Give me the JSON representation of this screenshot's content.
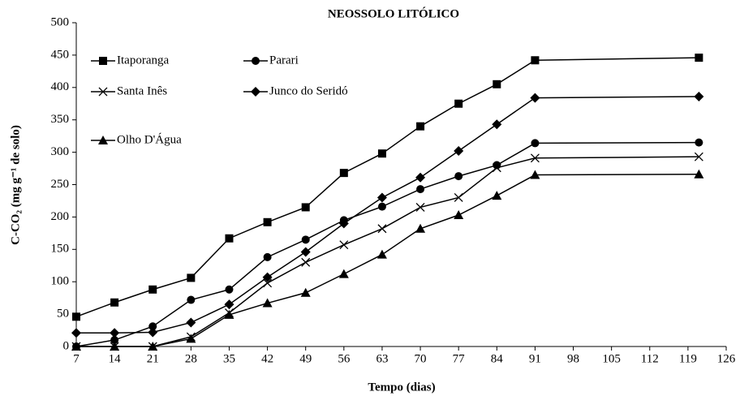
{
  "chart_data": {
    "type": "line",
    "title": "NEOSSOLO LITÓLICO",
    "x_label": "Tempo (dias)",
    "y_label": "C-CO₂ (mg g⁻¹ de solo)",
    "x": [
      7,
      14,
      21,
      28,
      35,
      42,
      49,
      56,
      63,
      70,
      77,
      84,
      91,
      121
    ],
    "xlim": [
      7,
      126
    ],
    "xticks": [
      7,
      14,
      21,
      28,
      35,
      42,
      49,
      56,
      63,
      70,
      77,
      84,
      91,
      98,
      105,
      112,
      119,
      126
    ],
    "ylim": [
      0,
      500
    ],
    "yticks": [
      0,
      50,
      100,
      150,
      200,
      250,
      300,
      350,
      400,
      450,
      500
    ],
    "legend": "upper left",
    "grid": false,
    "series": [
      {
        "name": "Itaporanga",
        "color": "#000000",
        "marker": "square",
        "values": [
          46,
          68,
          88,
          106,
          167,
          192,
          215,
          268,
          298,
          340,
          375,
          405,
          442,
          446
        ]
      },
      {
        "name": "Parari",
        "color": "#000000",
        "marker": "circle",
        "values": [
          0,
          10,
          31,
          72,
          88,
          138,
          165,
          195,
          216,
          243,
          263,
          280,
          314,
          315
        ]
      },
      {
        "name": "Santa Inês",
        "color": "#000000",
        "marker": "x",
        "values": [
          0,
          0,
          0,
          15,
          52,
          98,
          130,
          157,
          182,
          215,
          230,
          276,
          291,
          293
        ]
      },
      {
        "name": "Junco do Seridó",
        "color": "#000000",
        "marker": "diamond",
        "values": [
          21,
          21,
          22,
          37,
          65,
          107,
          146,
          190,
          230,
          261,
          302,
          343,
          384,
          386
        ]
      },
      {
        "name": "Olho D'Água",
        "color": "#000000",
        "marker": "triangle",
        "values": [
          0,
          0,
          0,
          12,
          49,
          67,
          83,
          112,
          142,
          182,
          203,
          233,
          265,
          266
        ]
      }
    ]
  }
}
